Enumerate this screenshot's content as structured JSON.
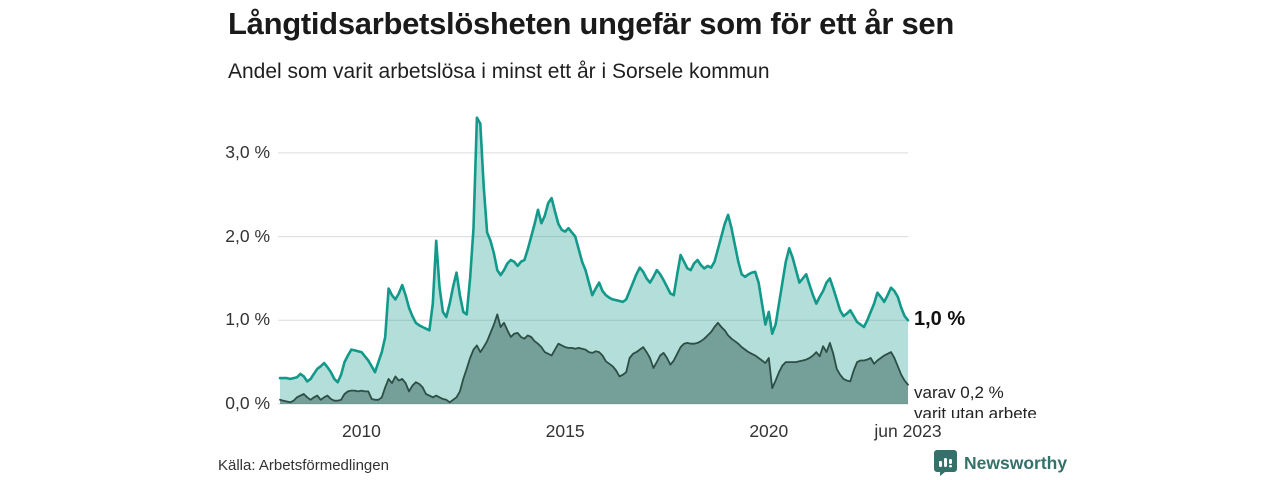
{
  "header": {
    "title": "Långtidsarbetslösheten ungefär som för ett år sen",
    "subtitle": "Andel som varit arbetslösa i minst ett år i Sorsele kommun"
  },
  "chart_data": {
    "type": "area",
    "unit": "%",
    "x_start": "2008-01",
    "x_end": "2023-06",
    "months_per_point": 1,
    "ylim": [
      0,
      3.5
    ],
    "grid": "horizontal",
    "y_ticks": [
      {
        "label": "3,0 %",
        "value": 3.0
      },
      {
        "label": "2,0 %",
        "value": 2.0
      },
      {
        "label": "1,0 %",
        "value": 1.0
      },
      {
        "label": "0,0 %",
        "value": 0.0
      }
    ],
    "x_ticks": [
      {
        "label": "2010",
        "year": 2010.0
      },
      {
        "label": "2015",
        "year": 2015.0
      },
      {
        "label": "2020",
        "year": 2020.0
      },
      {
        "label": "jun 2023",
        "year": 2023.417
      }
    ],
    "series": [
      {
        "name": "andel-arbetslosa-minst-ett-ar",
        "line_color": "#12998a",
        "fill_color": "rgba(18,153,138,0.32)",
        "line_width": 2.6,
        "values": [
          0.31,
          0.31,
          0.31,
          0.3,
          0.31,
          0.32,
          0.36,
          0.33,
          0.27,
          0.3,
          0.36,
          0.42,
          0.45,
          0.49,
          0.44,
          0.38,
          0.3,
          0.26,
          0.35,
          0.5,
          0.58,
          0.65,
          0.64,
          0.63,
          0.62,
          0.57,
          0.52,
          0.45,
          0.38,
          0.5,
          0.62,
          0.8,
          1.38,
          1.3,
          1.25,
          1.32,
          1.42,
          1.3,
          1.15,
          1.05,
          0.97,
          0.94,
          0.92,
          0.9,
          0.88,
          1.2,
          1.95,
          1.4,
          1.1,
          1.04,
          1.2,
          1.4,
          1.57,
          1.3,
          1.1,
          1.07,
          1.5,
          2.1,
          3.42,
          3.35,
          2.6,
          2.05,
          1.95,
          1.8,
          1.6,
          1.54,
          1.6,
          1.68,
          1.72,
          1.7,
          1.65,
          1.7,
          1.72,
          1.85,
          2.0,
          2.15,
          2.32,
          2.16,
          2.25,
          2.4,
          2.46,
          2.3,
          2.15,
          2.08,
          2.06,
          2.1,
          2.05,
          2.0,
          1.85,
          1.7,
          1.6,
          1.45,
          1.3,
          1.38,
          1.45,
          1.35,
          1.3,
          1.27,
          1.25,
          1.24,
          1.23,
          1.22,
          1.25,
          1.35,
          1.45,
          1.55,
          1.63,
          1.58,
          1.5,
          1.45,
          1.52,
          1.6,
          1.55,
          1.48,
          1.4,
          1.32,
          1.3,
          1.55,
          1.78,
          1.7,
          1.62,
          1.6,
          1.68,
          1.72,
          1.66,
          1.62,
          1.65,
          1.63,
          1.7,
          1.85,
          2.0,
          2.15,
          2.26,
          2.1,
          1.9,
          1.7,
          1.55,
          1.52,
          1.55,
          1.57,
          1.58,
          1.45,
          1.2,
          0.95,
          1.1,
          0.84,
          0.95,
          1.2,
          1.45,
          1.7,
          1.86,
          1.75,
          1.6,
          1.45,
          1.5,
          1.55,
          1.42,
          1.3,
          1.2,
          1.28,
          1.35,
          1.45,
          1.5,
          1.38,
          1.25,
          1.12,
          1.05,
          1.08,
          1.12,
          1.05,
          0.98,
          0.95,
          0.92,
          1.0,
          1.1,
          1.2,
          1.33,
          1.28,
          1.22,
          1.3,
          1.39,
          1.35,
          1.28,
          1.15,
          1.05,
          1.0
        ]
      },
      {
        "name": "varav-utan-arbete",
        "line_color": "#2d4e46",
        "fill_color": "rgba(32,74,64,0.42)",
        "line_width": 1.8,
        "values": [
          0.05,
          0.04,
          0.03,
          0.02,
          0.04,
          0.08,
          0.1,
          0.12,
          0.08,
          0.05,
          0.08,
          0.1,
          0.05,
          0.08,
          0.1,
          0.06,
          0.04,
          0.04,
          0.05,
          0.12,
          0.15,
          0.16,
          0.16,
          0.15,
          0.16,
          0.15,
          0.15,
          0.06,
          0.05,
          0.05,
          0.08,
          0.2,
          0.3,
          0.25,
          0.33,
          0.28,
          0.3,
          0.25,
          0.15,
          0.22,
          0.26,
          0.24,
          0.2,
          0.12,
          0.1,
          0.08,
          0.1,
          0.08,
          0.06,
          0.05,
          0.02,
          0.05,
          0.08,
          0.15,
          0.3,
          0.42,
          0.55,
          0.65,
          0.7,
          0.62,
          0.68,
          0.75,
          0.85,
          0.95,
          1.07,
          0.92,
          0.97,
          0.88,
          0.8,
          0.84,
          0.85,
          0.8,
          0.78,
          0.82,
          0.8,
          0.75,
          0.72,
          0.68,
          0.62,
          0.6,
          0.58,
          0.65,
          0.72,
          0.7,
          0.68,
          0.67,
          0.67,
          0.66,
          0.67,
          0.66,
          0.65,
          0.62,
          0.61,
          0.63,
          0.62,
          0.58,
          0.51,
          0.48,
          0.45,
          0.4,
          0.33,
          0.35,
          0.38,
          0.55,
          0.6,
          0.62,
          0.65,
          0.68,
          0.62,
          0.55,
          0.43,
          0.5,
          0.58,
          0.61,
          0.55,
          0.47,
          0.52,
          0.6,
          0.68,
          0.72,
          0.73,
          0.72,
          0.72,
          0.73,
          0.75,
          0.78,
          0.82,
          0.86,
          0.92,
          0.97,
          0.92,
          0.88,
          0.82,
          0.78,
          0.75,
          0.72,
          0.68,
          0.65,
          0.62,
          0.6,
          0.58,
          0.55,
          0.52,
          0.49,
          0.55,
          0.19,
          0.28,
          0.38,
          0.46,
          0.5,
          0.5,
          0.5,
          0.5,
          0.51,
          0.52,
          0.53,
          0.55,
          0.58,
          0.62,
          0.57,
          0.69,
          0.62,
          0.73,
          0.6,
          0.42,
          0.35,
          0.3,
          0.28,
          0.27,
          0.4,
          0.5,
          0.52,
          0.52,
          0.53,
          0.55,
          0.48,
          0.52,
          0.55,
          0.58,
          0.6,
          0.62,
          0.55,
          0.45,
          0.35,
          0.28,
          0.23
        ]
      }
    ],
    "end_labels": {
      "total": "1,0 %",
      "subset_line1": "varav 0,2 %",
      "subset_line2": "varit utan arbete"
    },
    "grid_color": "#dcdcdc"
  },
  "footer": {
    "source": "Källa: Arbetsförmedlingen",
    "brand": "Newsworthy"
  },
  "icons": {
    "brand_icon": "newsworthy-bar-chart-pin",
    "brand_color": "#33716a"
  }
}
